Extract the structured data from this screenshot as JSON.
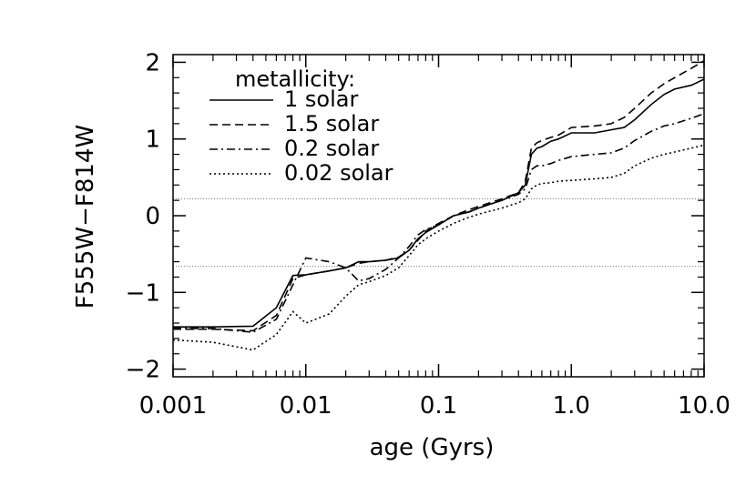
{
  "chart_data": {
    "type": "line",
    "title": "",
    "xlabel": "age (Gyrs)",
    "ylabel": "F555W−F814W",
    "x_scale": "log",
    "xlim": [
      0.001,
      10.0
    ],
    "ylim": [
      -2.1,
      2.1
    ],
    "x_ticks": [
      0.001,
      0.01,
      0.1,
      1.0,
      10.0
    ],
    "x_tick_labels": [
      "0.001",
      "0.01",
      "0.1",
      "1.0",
      "10.0"
    ],
    "y_ticks": [
      -2,
      -1,
      0,
      1,
      2
    ],
    "y_tick_labels": [
      "−2",
      "−1",
      "0",
      "1",
      "2"
    ],
    "grid": false,
    "legend": {
      "title": "metallicity:",
      "placement": "top-left"
    },
    "reference_lines": [
      {
        "y": 0.22,
        "style": "dotted"
      },
      {
        "y": -0.66,
        "style": "dotted"
      }
    ],
    "series": [
      {
        "name": "1 solar",
        "style": "solid",
        "x": [
          0.001,
          0.002,
          0.004,
          0.006,
          0.008,
          0.01,
          0.015,
          0.02,
          0.025,
          0.03,
          0.04,
          0.05,
          0.06,
          0.07,
          0.08,
          0.1,
          0.13,
          0.17,
          0.2,
          0.3,
          0.4,
          0.45,
          0.5,
          0.55,
          0.6,
          0.7,
          0.8,
          1.0,
          1.5,
          2.0,
          2.5,
          3.0,
          4.0,
          5.0,
          6.0,
          8.0,
          10.0
        ],
        "y": [
          -1.45,
          -1.45,
          -1.44,
          -1.2,
          -0.78,
          -0.77,
          -0.72,
          -0.68,
          -0.6,
          -0.6,
          -0.58,
          -0.55,
          -0.45,
          -0.3,
          -0.22,
          -0.12,
          0.0,
          0.05,
          0.1,
          0.2,
          0.3,
          0.4,
          0.8,
          0.88,
          0.9,
          0.97,
          1.0,
          1.08,
          1.08,
          1.12,
          1.15,
          1.25,
          1.45,
          1.58,
          1.65,
          1.7,
          1.78
        ]
      },
      {
        "name": "1.5 solar",
        "style": "dashed",
        "x": [
          0.001,
          0.002,
          0.004,
          0.006,
          0.008,
          0.01,
          0.015,
          0.02,
          0.025,
          0.03,
          0.04,
          0.05,
          0.06,
          0.07,
          0.08,
          0.1,
          0.13,
          0.17,
          0.2,
          0.3,
          0.4,
          0.45,
          0.5,
          0.55,
          0.6,
          0.7,
          0.8,
          1.0,
          1.5,
          2.0,
          2.5,
          3.0,
          4.0,
          5.0,
          6.0,
          8.0,
          10.0
        ],
        "y": [
          -1.48,
          -1.48,
          -1.5,
          -1.3,
          -0.82,
          -0.77,
          -0.72,
          -0.68,
          -0.62,
          -0.6,
          -0.58,
          -0.54,
          -0.45,
          -0.32,
          -0.2,
          -0.1,
          0.0,
          0.08,
          0.12,
          0.22,
          0.3,
          0.45,
          0.88,
          0.95,
          0.98,
          1.02,
          1.05,
          1.15,
          1.17,
          1.2,
          1.28,
          1.4,
          1.6,
          1.72,
          1.8,
          1.92,
          2.02
        ]
      },
      {
        "name": "0.2 solar",
        "style": "dashdot",
        "x": [
          0.001,
          0.002,
          0.004,
          0.006,
          0.008,
          0.01,
          0.015,
          0.02,
          0.025,
          0.03,
          0.04,
          0.05,
          0.06,
          0.07,
          0.08,
          0.1,
          0.13,
          0.17,
          0.2,
          0.3,
          0.4,
          0.45,
          0.5,
          0.55,
          0.6,
          0.7,
          0.8,
          1.0,
          1.5,
          2.0,
          2.5,
          3.0,
          4.0,
          5.0,
          6.0,
          8.0,
          10.0
        ],
        "y": [
          -1.47,
          -1.47,
          -1.52,
          -1.35,
          -0.9,
          -0.55,
          -0.6,
          -0.68,
          -0.85,
          -0.82,
          -0.7,
          -0.55,
          -0.4,
          -0.25,
          -0.18,
          -0.12,
          0.0,
          0.05,
          0.1,
          0.2,
          0.28,
          0.35,
          0.6,
          0.65,
          0.65,
          0.68,
          0.72,
          0.77,
          0.8,
          0.82,
          0.88,
          0.98,
          1.1,
          1.17,
          1.2,
          1.27,
          1.33
        ]
      },
      {
        "name": "0.02 solar",
        "style": "dotted",
        "x": [
          0.001,
          0.002,
          0.004,
          0.006,
          0.008,
          0.01,
          0.015,
          0.02,
          0.025,
          0.03,
          0.04,
          0.05,
          0.06,
          0.07,
          0.08,
          0.1,
          0.13,
          0.17,
          0.2,
          0.3,
          0.4,
          0.45,
          0.5,
          0.55,
          0.6,
          0.7,
          0.8,
          1.0,
          1.5,
          2.0,
          2.5,
          3.0,
          4.0,
          5.0,
          6.0,
          8.0,
          10.0
        ],
        "y": [
          -1.62,
          -1.65,
          -1.75,
          -1.55,
          -1.25,
          -1.4,
          -1.28,
          -1.05,
          -0.9,
          -0.86,
          -0.78,
          -0.68,
          -0.52,
          -0.38,
          -0.3,
          -0.2,
          -0.1,
          -0.02,
          0.02,
          0.1,
          0.17,
          0.22,
          0.35,
          0.4,
          0.42,
          0.43,
          0.45,
          0.46,
          0.48,
          0.5,
          0.55,
          0.65,
          0.75,
          0.8,
          0.83,
          0.88,
          0.92
        ]
      }
    ]
  }
}
